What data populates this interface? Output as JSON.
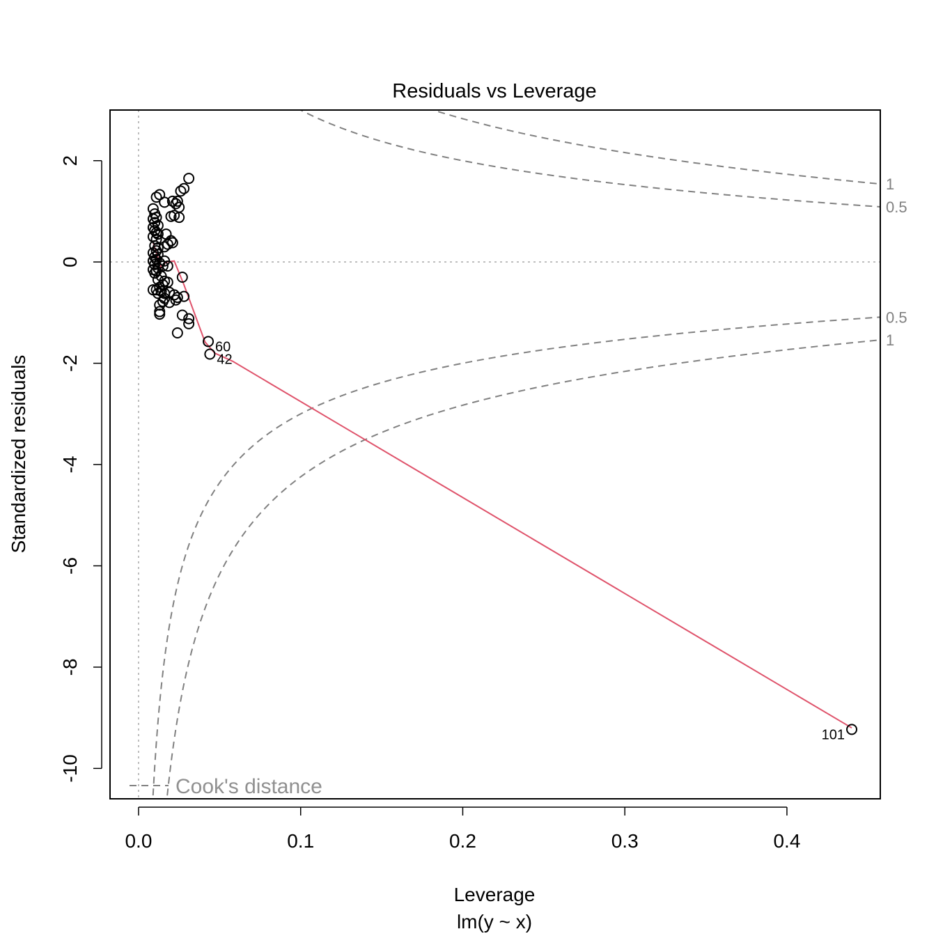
{
  "chart_data": {
    "type": "scatter",
    "title": "Residuals vs Leverage",
    "xlabel": "Leverage",
    "xsublabel": "lm(y ~ x)",
    "ylabel": "Standardized residuals",
    "xlim": [
      -0.0176,
      0.4576
    ],
    "ylim": [
      -10.6,
      3.0
    ],
    "xticks": [
      {
        "value": 0.0,
        "label": "0.0"
      },
      {
        "value": 0.1,
        "label": "0.1"
      },
      {
        "value": 0.2,
        "label": "0.2"
      },
      {
        "value": 0.3,
        "label": "0.3"
      },
      {
        "value": 0.4,
        "label": "0.4"
      }
    ],
    "yticks": [
      {
        "value": 2,
        "label": "2"
      },
      {
        "value": 0,
        "label": "0"
      },
      {
        "value": -2,
        "label": "-2"
      },
      {
        "value": -4,
        "label": "-4"
      },
      {
        "value": -6,
        "label": "-6"
      },
      {
        "value": -8,
        "label": "-8"
      },
      {
        "value": -10,
        "label": "-10"
      }
    ],
    "grid": false,
    "reference_lines": {
      "x": 0,
      "y": 0
    },
    "points": [
      [
        0.009,
        1.05
      ],
      [
        0.011,
        1.28
      ],
      [
        0.013,
        1.33
      ],
      [
        0.016,
        1.18
      ],
      [
        0.021,
        1.2
      ],
      [
        0.023,
        1.15
      ],
      [
        0.024,
        1.2
      ],
      [
        0.025,
        1.08
      ],
      [
        0.026,
        1.4
      ],
      [
        0.028,
        1.45
      ],
      [
        0.031,
        1.65
      ],
      [
        0.02,
        0.9
      ],
      [
        0.022,
        0.92
      ],
      [
        0.025,
        0.88
      ],
      [
        0.01,
        0.95
      ],
      [
        0.011,
        0.88
      ],
      [
        0.009,
        0.85
      ],
      [
        0.01,
        0.78
      ],
      [
        0.012,
        0.72
      ],
      [
        0.009,
        0.68
      ],
      [
        0.01,
        0.62
      ],
      [
        0.011,
        0.58
      ],
      [
        0.012,
        0.55
      ],
      [
        0.009,
        0.5
      ],
      [
        0.011,
        0.45
      ],
      [
        0.017,
        0.55
      ],
      [
        0.02,
        0.42
      ],
      [
        0.021,
        0.38
      ],
      [
        0.018,
        0.35
      ],
      [
        0.016,
        0.3
      ],
      [
        0.01,
        0.32
      ],
      [
        0.012,
        0.28
      ],
      [
        0.011,
        0.22
      ],
      [
        0.009,
        0.18
      ],
      [
        0.012,
        0.15
      ],
      [
        0.01,
        0.1
      ],
      [
        0.011,
        0.05
      ],
      [
        0.009,
        0.02
      ],
      [
        0.013,
        -0.02
      ],
      [
        0.01,
        -0.05
      ],
      [
        0.015,
        -0.08
      ],
      [
        0.012,
        -0.12
      ],
      [
        0.009,
        -0.15
      ],
      [
        0.011,
        -0.18
      ],
      [
        0.01,
        -0.22
      ],
      [
        0.016,
        0.02
      ],
      [
        0.018,
        -0.08
      ],
      [
        0.014,
        -0.28
      ],
      [
        0.012,
        -0.35
      ],
      [
        0.016,
        -0.38
      ],
      [
        0.018,
        -0.4
      ],
      [
        0.015,
        -0.45
      ],
      [
        0.013,
        -0.5
      ],
      [
        0.011,
        -0.55
      ],
      [
        0.009,
        -0.55
      ],
      [
        0.014,
        -0.58
      ],
      [
        0.012,
        -0.62
      ],
      [
        0.016,
        -0.62
      ],
      [
        0.019,
        -0.6
      ],
      [
        0.022,
        -0.65
      ],
      [
        0.024,
        -0.7
      ],
      [
        0.028,
        -0.68
      ],
      [
        0.023,
        -0.75
      ],
      [
        0.019,
        -0.8
      ],
      [
        0.015,
        -0.78
      ],
      [
        0.013,
        -0.85
      ],
      [
        0.016,
        -0.72
      ],
      [
        0.013,
        -0.98
      ],
      [
        0.013,
        -1.03
      ],
      [
        0.027,
        -0.3
      ],
      [
        0.027,
        -1.05
      ],
      [
        0.031,
        -1.12
      ],
      [
        0.031,
        -1.22
      ],
      [
        0.024,
        -1.4
      ],
      [
        0.043,
        -1.57
      ],
      [
        0.044,
        -1.82
      ],
      [
        0.44,
        -9.23
      ]
    ],
    "point_labels": [
      {
        "x": 0.043,
        "y": -1.57,
        "label": "60"
      },
      {
        "x": 0.044,
        "y": -1.82,
        "label": "42"
      },
      {
        "x": 0.44,
        "y": -9.23,
        "label": "101"
      }
    ],
    "smoother": {
      "color": "#DF536B",
      "points": [
        [
          0.009,
          0.38
        ],
        [
          0.014,
          -0.12
        ],
        [
          0.017,
          0.0
        ],
        [
          0.022,
          0.02
        ],
        [
          0.028,
          -0.45
        ],
        [
          0.041,
          -1.58
        ],
        [
          0.047,
          -1.8
        ],
        [
          0.058,
          -1.96
        ],
        [
          0.44,
          -9.2
        ]
      ]
    },
    "cooks_distance": {
      "color": "#808080",
      "contour_labels": [
        {
          "level": 0.5,
          "side": "upper",
          "label": "0.5"
        },
        {
          "level": 1,
          "side": "upper",
          "label": "1"
        },
        {
          "level": 0.5,
          "side": "lower",
          "label": "0.5"
        },
        {
          "level": 1,
          "side": "lower",
          "label": "1"
        }
      ],
      "legend": "Cook's distance",
      "legend_position": "bottom-left"
    }
  }
}
